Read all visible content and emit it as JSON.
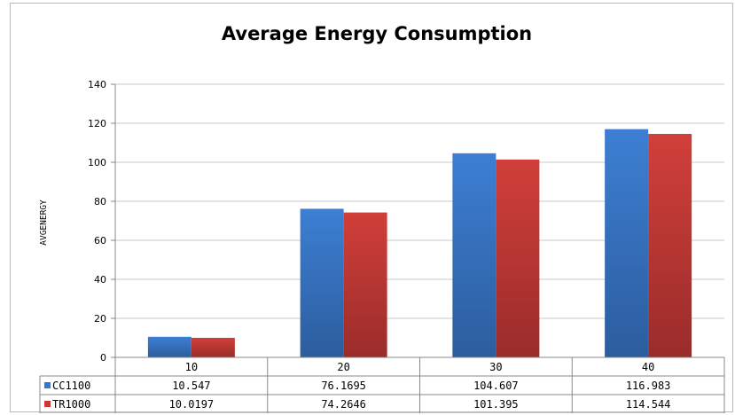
{
  "chart_data": {
    "type": "bar",
    "title": "Average Energy Consumption",
    "xlabel": "",
    "ylabel": "AVGENERGY",
    "categories": [
      "10",
      "20",
      "30",
      "40"
    ],
    "series": [
      {
        "name": "CC1100",
        "values": [
          10.547,
          76.1695,
          104.607,
          116.983
        ],
        "value_labels": [
          "10.547",
          "76.1695",
          "104.607",
          "116.983"
        ],
        "color": "#3a78c9"
      },
      {
        "name": "TR1000",
        "values": [
          10.0197,
          74.2646,
          101.395,
          114.544
        ],
        "value_labels": [
          "10.0197",
          "74.2646",
          "101.395",
          "114.544"
        ],
        "color": "#c83a36"
      }
    ],
    "ylim": [
      0,
      140
    ],
    "yticks": [
      0,
      20,
      40,
      60,
      80,
      100,
      120,
      140
    ],
    "grid": true,
    "legend": "data-table-left"
  }
}
